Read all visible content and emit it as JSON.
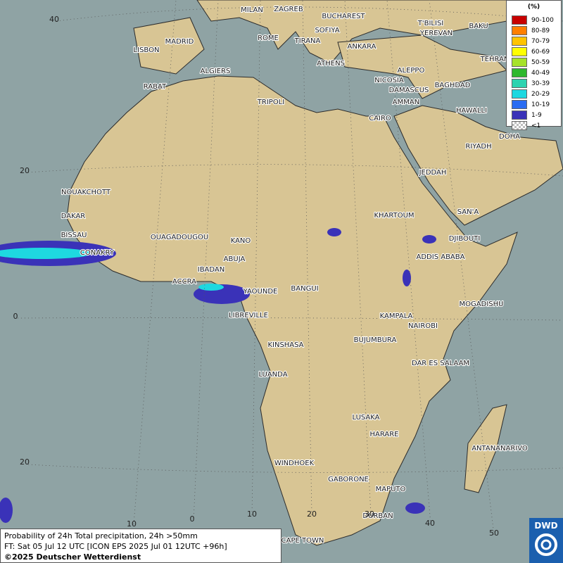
{
  "legend": {
    "title": "(%)",
    "entries": [
      {
        "label": "90-100",
        "color": "#c80000"
      },
      {
        "label": "80-89",
        "color": "#ff7f00"
      },
      {
        "label": "70-79",
        "color": "#ffc400"
      },
      {
        "label": "60-69",
        "color": "#ffff00"
      },
      {
        "label": "50-59",
        "color": "#a6e22a"
      },
      {
        "label": "40-49",
        "color": "#2eb82e"
      },
      {
        "label": "30-39",
        "color": "#2ed3b0"
      },
      {
        "label": "20-29",
        "color": "#1ed8e0"
      },
      {
        "label": "10-19",
        "color": "#2a6cf2"
      },
      {
        "label": "1-9",
        "color": "#3a32b8"
      },
      {
        "label": "<1",
        "color": "#bdbdbd"
      }
    ]
  },
  "grid_labels": {
    "latitude": [
      40,
      20,
      0,
      20
    ],
    "longitude": [
      10,
      0,
      10,
      20,
      30,
      40,
      50
    ]
  },
  "cities": [
    "MILAN",
    "ZAGREB",
    "BUCHAREST",
    "T'BILISI",
    "BAKU",
    "SOFIYA",
    "YEREVAN",
    "ROME",
    "MADRID",
    "TIRANA",
    "ANKARA",
    "TEHRAN",
    "LISBON",
    "ATHENS",
    "ALGIERS",
    "ALEPPO",
    "NICOSIA",
    "RABAT",
    "BAGHDAD",
    "DAMASCUS",
    "AMMAN",
    "TRIPOLI",
    "HAWALLI",
    "CAIRO",
    "DOHA",
    "RIYADH",
    "JEDDAH",
    "NOUAKCHOTT",
    "DAKAR",
    "KHARTOUM",
    "SAN'A",
    "BISSAU",
    "DJIBOUTI",
    "OUAGADOUGOU",
    "KANO",
    "CONAKRY",
    "ABUJA",
    "ADDIS ABABA",
    "IBADAN",
    "ACCRA",
    "YAOUNDE",
    "BANGUI",
    "MOGADISHU",
    "LIBREVILLE",
    "KAMPALA",
    "NAIROBI",
    "KINSHASA",
    "BUJUMBURA",
    "DAR ES SALAAM",
    "LUANDA",
    "LUSAKA",
    "HARARE",
    "ANTANANARIVO",
    "WINDHOEK",
    "GABORONE",
    "MAPUTO",
    "DURBAN",
    "CAPE TOWN"
  ],
  "caption": {
    "line1": "Probability of 24h Total precipitation, 24h >50mm",
    "line2": "FT: Sat 05 Jul 12 UTC [ICON EPS 2025 Jul 01 12UTC +96h]",
    "credit": "©2025 Deutscher Wetterdienst"
  },
  "logo": "DWD"
}
